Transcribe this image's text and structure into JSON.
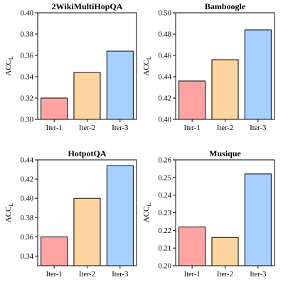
{
  "chart_data": [
    {
      "type": "bar",
      "title": "2WikiMultiHopQA",
      "categories": [
        "Iter-1",
        "Iter-2",
        "Iter-3"
      ],
      "values": [
        0.32,
        0.344,
        0.364
      ],
      "ylabel_main": "ACC",
      "ylabel_sub": "L",
      "ylim": [
        0.3,
        0.4
      ],
      "yticks": [
        "0.30",
        "0.32",
        "0.34",
        "0.36",
        "0.38",
        "0.40"
      ],
      "grid": false
    },
    {
      "type": "bar",
      "title": "Bamboogle",
      "categories": [
        "Iter-1",
        "Iter-2",
        "Iter-3"
      ],
      "values": [
        0.436,
        0.456,
        0.484
      ],
      "ylabel_main": "ACC",
      "ylabel_sub": "L",
      "ylim": [
        0.4,
        0.5
      ],
      "yticks": [
        "0.40",
        "0.42",
        "0.44",
        "0.46",
        "0.48",
        "0.50"
      ],
      "grid": false
    },
    {
      "type": "bar",
      "title": "HotpotQA",
      "categories": [
        "Iter-1",
        "Iter-2",
        "Iter-3"
      ],
      "values": [
        0.36,
        0.4,
        0.434
      ],
      "ylabel_main": "ACC",
      "ylabel_sub": "L",
      "ylim": [
        0.33,
        0.44
      ],
      "yticks": [
        "0.34",
        "0.36",
        "0.38",
        "0.40",
        "0.42",
        "0.44"
      ],
      "grid": false
    },
    {
      "type": "bar",
      "title": "Musique",
      "categories": [
        "Iter-1",
        "Iter-2",
        "Iter-3"
      ],
      "values": [
        0.222,
        0.216,
        0.252
      ],
      "ylabel_main": "ACC",
      "ylabel_sub": "L",
      "ylim": [
        0.2,
        0.26
      ],
      "yticks": [
        "0.20",
        "0.21",
        "0.22",
        "0.23",
        "0.24",
        "0.25",
        "0.26"
      ],
      "grid": false
    }
  ],
  "colors": {
    "iter1": "#ffa3a3",
    "iter2": "#ffd49f",
    "iter3": "#a8d0ff",
    "edge": "#000000"
  }
}
